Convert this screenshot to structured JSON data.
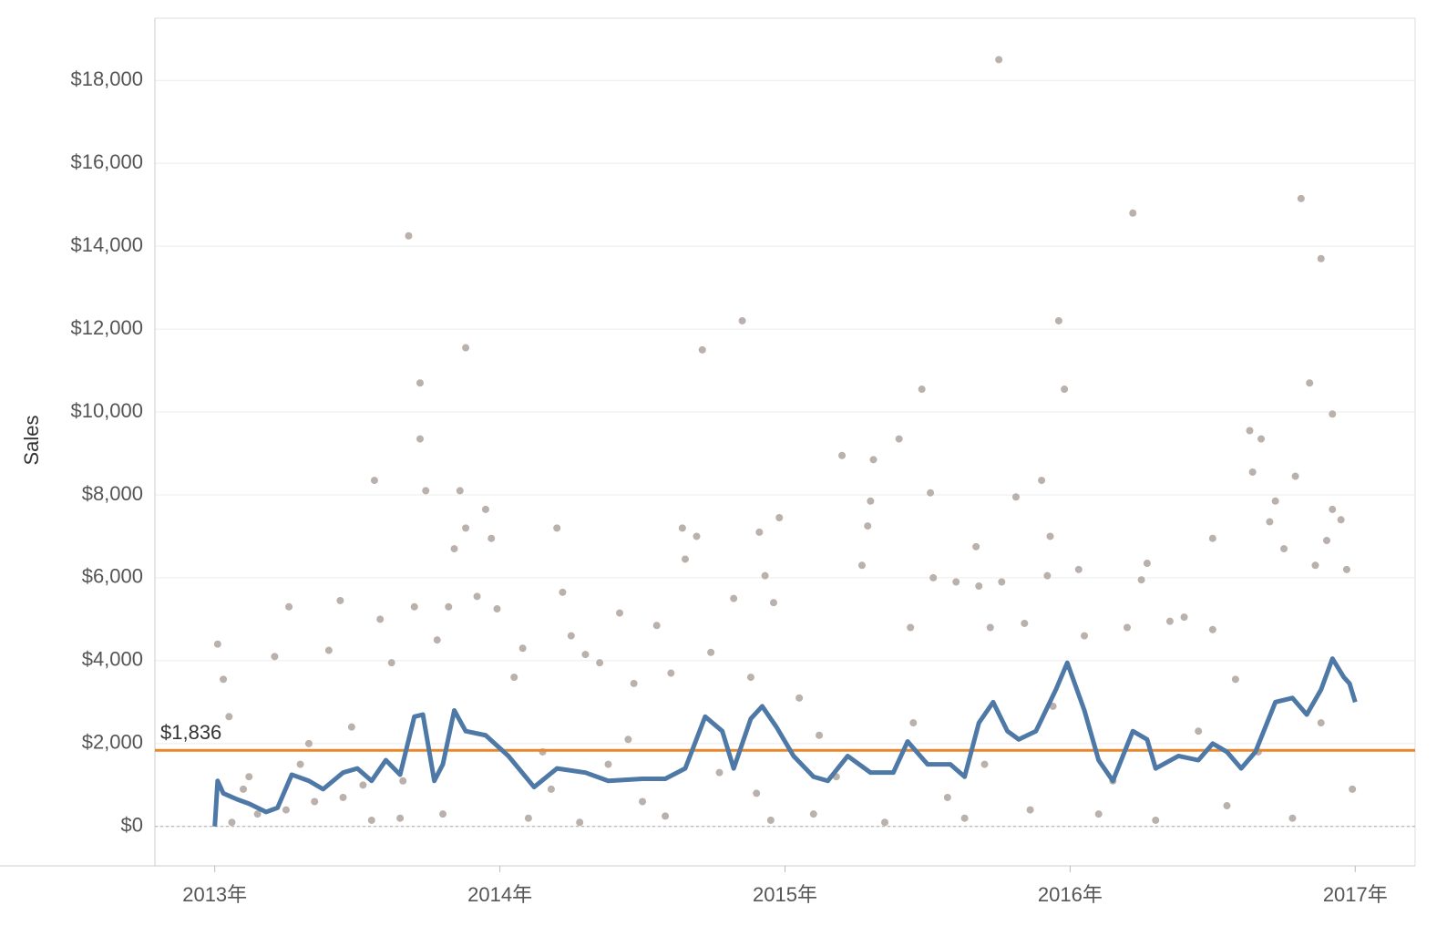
{
  "chart_data": {
    "type": "scatter",
    "y_label": "Sales",
    "xlim": [
      2012.79,
      2017.21
    ],
    "xticks": [
      {
        "value": 2013,
        "label": "2013年"
      },
      {
        "value": 2014,
        "label": "2014年"
      },
      {
        "value": 2015,
        "label": "2015年"
      },
      {
        "value": 2016,
        "label": "2016年"
      },
      {
        "value": 2017,
        "label": "2017年"
      }
    ],
    "ylim": [
      -950,
      19500
    ],
    "yticks": [
      {
        "value": 0,
        "label": "$0"
      },
      {
        "value": 2000,
        "label": "$2,000"
      },
      {
        "value": 4000,
        "label": "$4,000"
      },
      {
        "value": 6000,
        "label": "$6,000"
      },
      {
        "value": 8000,
        "label": "$8,000"
      },
      {
        "value": 10000,
        "label": "$10,000"
      },
      {
        "value": 12000,
        "label": "$12,000"
      },
      {
        "value": 14000,
        "label": "$14,000"
      },
      {
        "value": 16000,
        "label": "$16,000"
      },
      {
        "value": 18000,
        "label": "$18,000"
      }
    ],
    "grid": true,
    "series": [
      {
        "type": "scatter",
        "color": "#bab0ac",
        "x": [
          2013.01,
          2013.03,
          2013.05,
          2013.1,
          2013.15,
          2013.21,
          2013.26,
          2013.3,
          2013.35,
          2013.4,
          2013.44,
          2013.48,
          2013.52,
          2013.56,
          2013.58,
          2013.62,
          2013.65,
          2013.68,
          2013.7,
          2013.72,
          2013.72,
          2013.74,
          2013.78,
          2013.82,
          2013.84,
          2013.86,
          2013.88,
          2013.88,
          2013.92,
          2013.95,
          2013.97,
          2013.99,
          2013.06,
          2013.12,
          2013.25,
          2013.33,
          2013.45,
          2013.55,
          2013.66,
          2013.8,
          2014.05,
          2014.08,
          2014.15,
          2014.2,
          2014.22,
          2014.25,
          2014.3,
          2014.35,
          2014.42,
          2014.47,
          2014.55,
          2014.6,
          2014.64,
          2014.65,
          2014.69,
          2014.71,
          2014.74,
          2014.82,
          2014.85,
          2014.88,
          2014.91,
          2014.93,
          2014.96,
          2014.98,
          2014.1,
          2014.18,
          2014.28,
          2014.38,
          2014.5,
          2014.58,
          2014.77,
          2014.9,
          2014.95,
          2014.45,
          2015.05,
          2015.12,
          2015.2,
          2015.27,
          2015.29,
          2015.3,
          2015.31,
          2015.4,
          2015.44,
          2015.48,
          2015.51,
          2015.52,
          2015.6,
          2015.67,
          2015.68,
          2015.72,
          2015.75,
          2015.76,
          2015.81,
          2015.84,
          2015.9,
          2015.92,
          2015.93,
          2015.96,
          2015.98,
          2015.1,
          2015.18,
          2015.35,
          2015.45,
          2015.57,
          2015.63,
          2015.7,
          2015.86,
          2015.94,
          2016.03,
          2016.05,
          2016.2,
          2016.22,
          2016.25,
          2016.27,
          2016.35,
          2016.4,
          2016.5,
          2016.5,
          2016.58,
          2016.63,
          2016.64,
          2016.67,
          2016.7,
          2016.72,
          2016.75,
          2016.79,
          2016.81,
          2016.84,
          2016.86,
          2016.88,
          2016.9,
          2016.92,
          2016.92,
          2016.95,
          2016.97,
          2016.1,
          2016.15,
          2016.3,
          2016.45,
          2016.55,
          2016.66,
          2016.78,
          2016.99,
          2016.88
        ],
        "values": [
          4400,
          3550,
          2650,
          900,
          300,
          4100,
          5300,
          1500,
          600,
          4250,
          5450,
          2400,
          1000,
          8350,
          5000,
          3950,
          200,
          14250,
          5300,
          10700,
          9350,
          8100,
          4500,
          5300,
          6700,
          8100,
          11550,
          7200,
          5550,
          7650,
          6950,
          5250,
          100,
          1200,
          400,
          2000,
          700,
          150,
          1100,
          300,
          3600,
          4300,
          1800,
          7200,
          5650,
          4600,
          4150,
          3950,
          5150,
          3450,
          4850,
          3700,
          7200,
          6450,
          7000,
          11500,
          4200,
          5500,
          12200,
          3600,
          7100,
          6050,
          5400,
          7450,
          200,
          900,
          100,
          1500,
          600,
          250,
          1300,
          800,
          150,
          2100,
          3100,
          2200,
          8950,
          6300,
          7250,
          7850,
          8850,
          9350,
          4800,
          10550,
          8050,
          6000,
          5900,
          6750,
          5800,
          4800,
          18500,
          5900,
          7950,
          4900,
          8350,
          6050,
          7000,
          12200,
          10550,
          300,
          1200,
          100,
          2500,
          700,
          200,
          1500,
          400,
          2900,
          6200,
          4600,
          4800,
          14800,
          5950,
          6350,
          4950,
          5050,
          6950,
          4750,
          3550,
          9550,
          8550,
          9350,
          7350,
          7850,
          6700,
          8450,
          15150,
          10700,
          6300,
          13700,
          6900,
          9950,
          7650,
          7400,
          6200,
          300,
          1100,
          150,
          2300,
          500,
          1800,
          200,
          900,
          2500
        ]
      },
      {
        "type": "line",
        "color": "#4e79a7",
        "x": [
          2013.0,
          2013.01,
          2013.03,
          2013.08,
          2013.12,
          2013.18,
          2013.22,
          2013.27,
          2013.33,
          2013.38,
          2013.45,
          2013.5,
          2013.55,
          2013.6,
          2013.65,
          2013.7,
          2013.73,
          2013.77,
          2013.8,
          2013.84,
          2013.88,
          2013.95,
          2014.03,
          2014.12,
          2014.2,
          2014.3,
          2014.38,
          2014.5,
          2014.58,
          2014.65,
          2014.72,
          2014.78,
          2014.82,
          2014.88,
          2014.92,
          2014.97,
          2015.03,
          2015.1,
          2015.15,
          2015.22,
          2015.3,
          2015.38,
          2015.43,
          2015.5,
          2015.58,
          2015.63,
          2015.68,
          2015.73,
          2015.78,
          2015.82,
          2015.88,
          2015.95,
          2015.99,
          2016.05,
          2016.1,
          2016.15,
          2016.22,
          2016.27,
          2016.3,
          2016.38,
          2016.45,
          2016.5,
          2016.55,
          2016.6,
          2016.65,
          2016.72,
          2016.78,
          2016.83,
          2016.88,
          2016.92,
          2016.96,
          2016.98,
          2017.0
        ],
        "values": [
          0,
          1100,
          800,
          650,
          550,
          350,
          450,
          1250,
          1100,
          900,
          1300,
          1400,
          1100,
          1600,
          1250,
          2650,
          2700,
          1100,
          1500,
          2800,
          2300,
          2200,
          1700,
          950,
          1400,
          1300,
          1100,
          1150,
          1150,
          1400,
          2650,
          2300,
          1400,
          2600,
          2900,
          2400,
          1700,
          1200,
          1100,
          1700,
          1300,
          1300,
          2050,
          1500,
          1500,
          1200,
          2500,
          3000,
          2300,
          2100,
          2300,
          3300,
          3950,
          2800,
          1600,
          1100,
          2300,
          2100,
          1400,
          1700,
          1600,
          2000,
          1800,
          1400,
          1800,
          3000,
          3100,
          2700,
          3300,
          4050,
          3600,
          3450,
          3000
        ]
      }
    ],
    "reference_line": {
      "value": 1836,
      "label": "$1,836",
      "color": "#e8862a"
    }
  }
}
